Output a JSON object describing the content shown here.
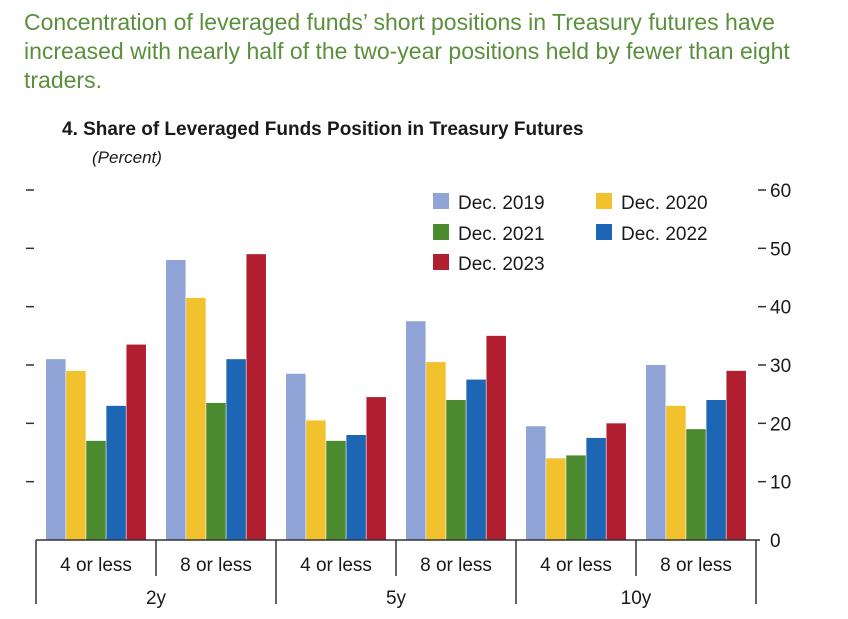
{
  "headline": "Concentration of leveraged funds’ short positions in Treasury futures have increased with nearly half of the two-year positions held by fewer than eight traders.",
  "chart_data": {
    "type": "bar",
    "title": "4. Share of Leveraged Funds Position in Treasury Futures",
    "unit": "(Percent)",
    "xlabel": "",
    "ylabel": "",
    "ylim": [
      0,
      60
    ],
    "yticks": [
      0,
      10,
      20,
      30,
      40,
      50,
      60
    ],
    "y_axis_side": "right",
    "grid": false,
    "legend_position": "top-right",
    "categories": [
      "4 or less",
      "8 or less",
      "4 or less",
      "8 or less",
      "4 or less",
      "8 or less"
    ],
    "groups": [
      {
        "label": "2y",
        "categories": [
          "4 or less",
          "8 or less"
        ]
      },
      {
        "label": "5y",
        "categories": [
          "4 or less",
          "8 or less"
        ]
      },
      {
        "label": "10y",
        "categories": [
          "4 or less",
          "8 or less"
        ]
      }
    ],
    "series": [
      {
        "name": "Dec. 2019",
        "color": "#8fa3d6",
        "values": [
          31,
          48,
          28.5,
          37.5,
          19.5,
          30
        ]
      },
      {
        "name": "Dec. 2020",
        "color": "#f2c12e",
        "values": [
          29,
          41.5,
          20.5,
          30.5,
          14,
          23
        ]
      },
      {
        "name": "Dec. 2021",
        "color": "#4b8a2e",
        "values": [
          17,
          23.5,
          17,
          24,
          14.5,
          19
        ]
      },
      {
        "name": "Dec. 2022",
        "color": "#1d66b3",
        "values": [
          23,
          31,
          18,
          27.5,
          17.5,
          24
        ]
      },
      {
        "name": "Dec. 2023",
        "color": "#b01e2f",
        "values": [
          33.5,
          49,
          24.5,
          35,
          20,
          29
        ]
      }
    ]
  }
}
